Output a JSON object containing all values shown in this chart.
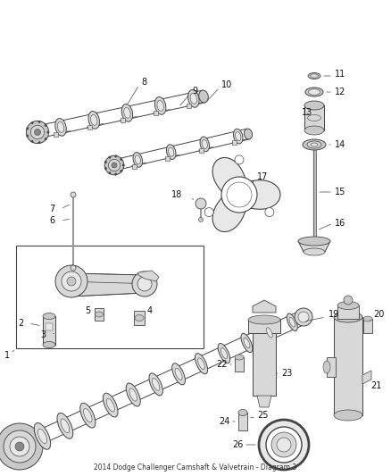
{
  "title": "2014 Dodge Challenger Camshaft & Valvetrain - Diagram 3",
  "background_color": "#ffffff",
  "line_color": "#444444",
  "label_color": "#111111",
  "figsize": [
    4.38,
    5.33
  ],
  "dpi": 100,
  "lc": "#444444",
  "gray1": "#c8c8c8",
  "gray2": "#d8d8d8",
  "gray3": "#e8e8e8",
  "darkgray": "#888888",
  "leader_lw": 0.5,
  "part_lw": 0.7
}
